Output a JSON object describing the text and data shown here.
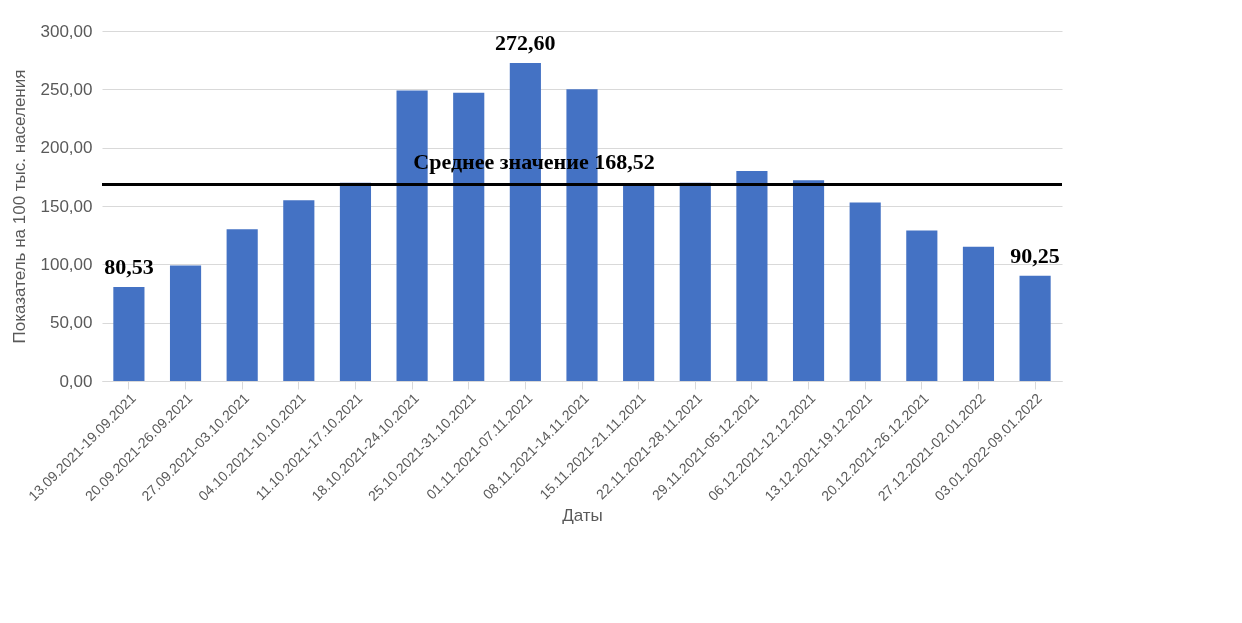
{
  "chart_data": {
    "type": "bar",
    "xlabel": "Даты",
    "ylabel": "Показатель на 100 тыс. населения",
    "categories": [
      "13.09.2021-19.09.2021",
      "20.09.2021-26.09.2021",
      "27.09.2021-03.10.2021",
      "04.10.2021-10.10.2021",
      "11.10.2021-17.10.2021",
      "18.10.2021-24.10.2021",
      "25.10.2021-31.10.2021",
      "01.11.2021-07.11.2021",
      "08.11.2021-14.11.2021",
      "15.11.2021-21.11.2021",
      "22.11.2021-28.11.2021",
      "29.11.2021-05.12.2021",
      "06.12.2021-12.12.2021",
      "13.12.2021-19.12.2021",
      "20.12.2021-26.12.2021",
      "27.12.2021-02.01.2022",
      "03.01.2022-09.01.2022"
    ],
    "values": [
      80.53,
      99,
      130,
      155,
      170,
      249,
      247,
      272.6,
      250,
      168,
      170,
      180,
      172,
      153,
      129,
      115,
      90.25
    ],
    "value_labels": [
      "80,53",
      null,
      null,
      null,
      null,
      null,
      null,
      "272,60",
      null,
      null,
      null,
      null,
      null,
      null,
      null,
      null,
      "90,25"
    ],
    "color": "#4472c4",
    "ylim": [
      0,
      300
    ],
    "yticks": [
      {
        "value": 0,
        "label": "0,00"
      },
      {
        "value": 50,
        "label": "50,00"
      },
      {
        "value": 100,
        "label": "100,00"
      },
      {
        "value": 150,
        "label": "150,00"
      },
      {
        "value": 200,
        "label": "200,00"
      },
      {
        "value": 250,
        "label": "250,00"
      },
      {
        "value": 300,
        "label": "300,00"
      }
    ],
    "grid": "y",
    "ref_lines": [
      {
        "axis": "y",
        "value": 168.52,
        "label": "Среднее значение 168,52",
        "color": "#000000"
      }
    ]
  }
}
